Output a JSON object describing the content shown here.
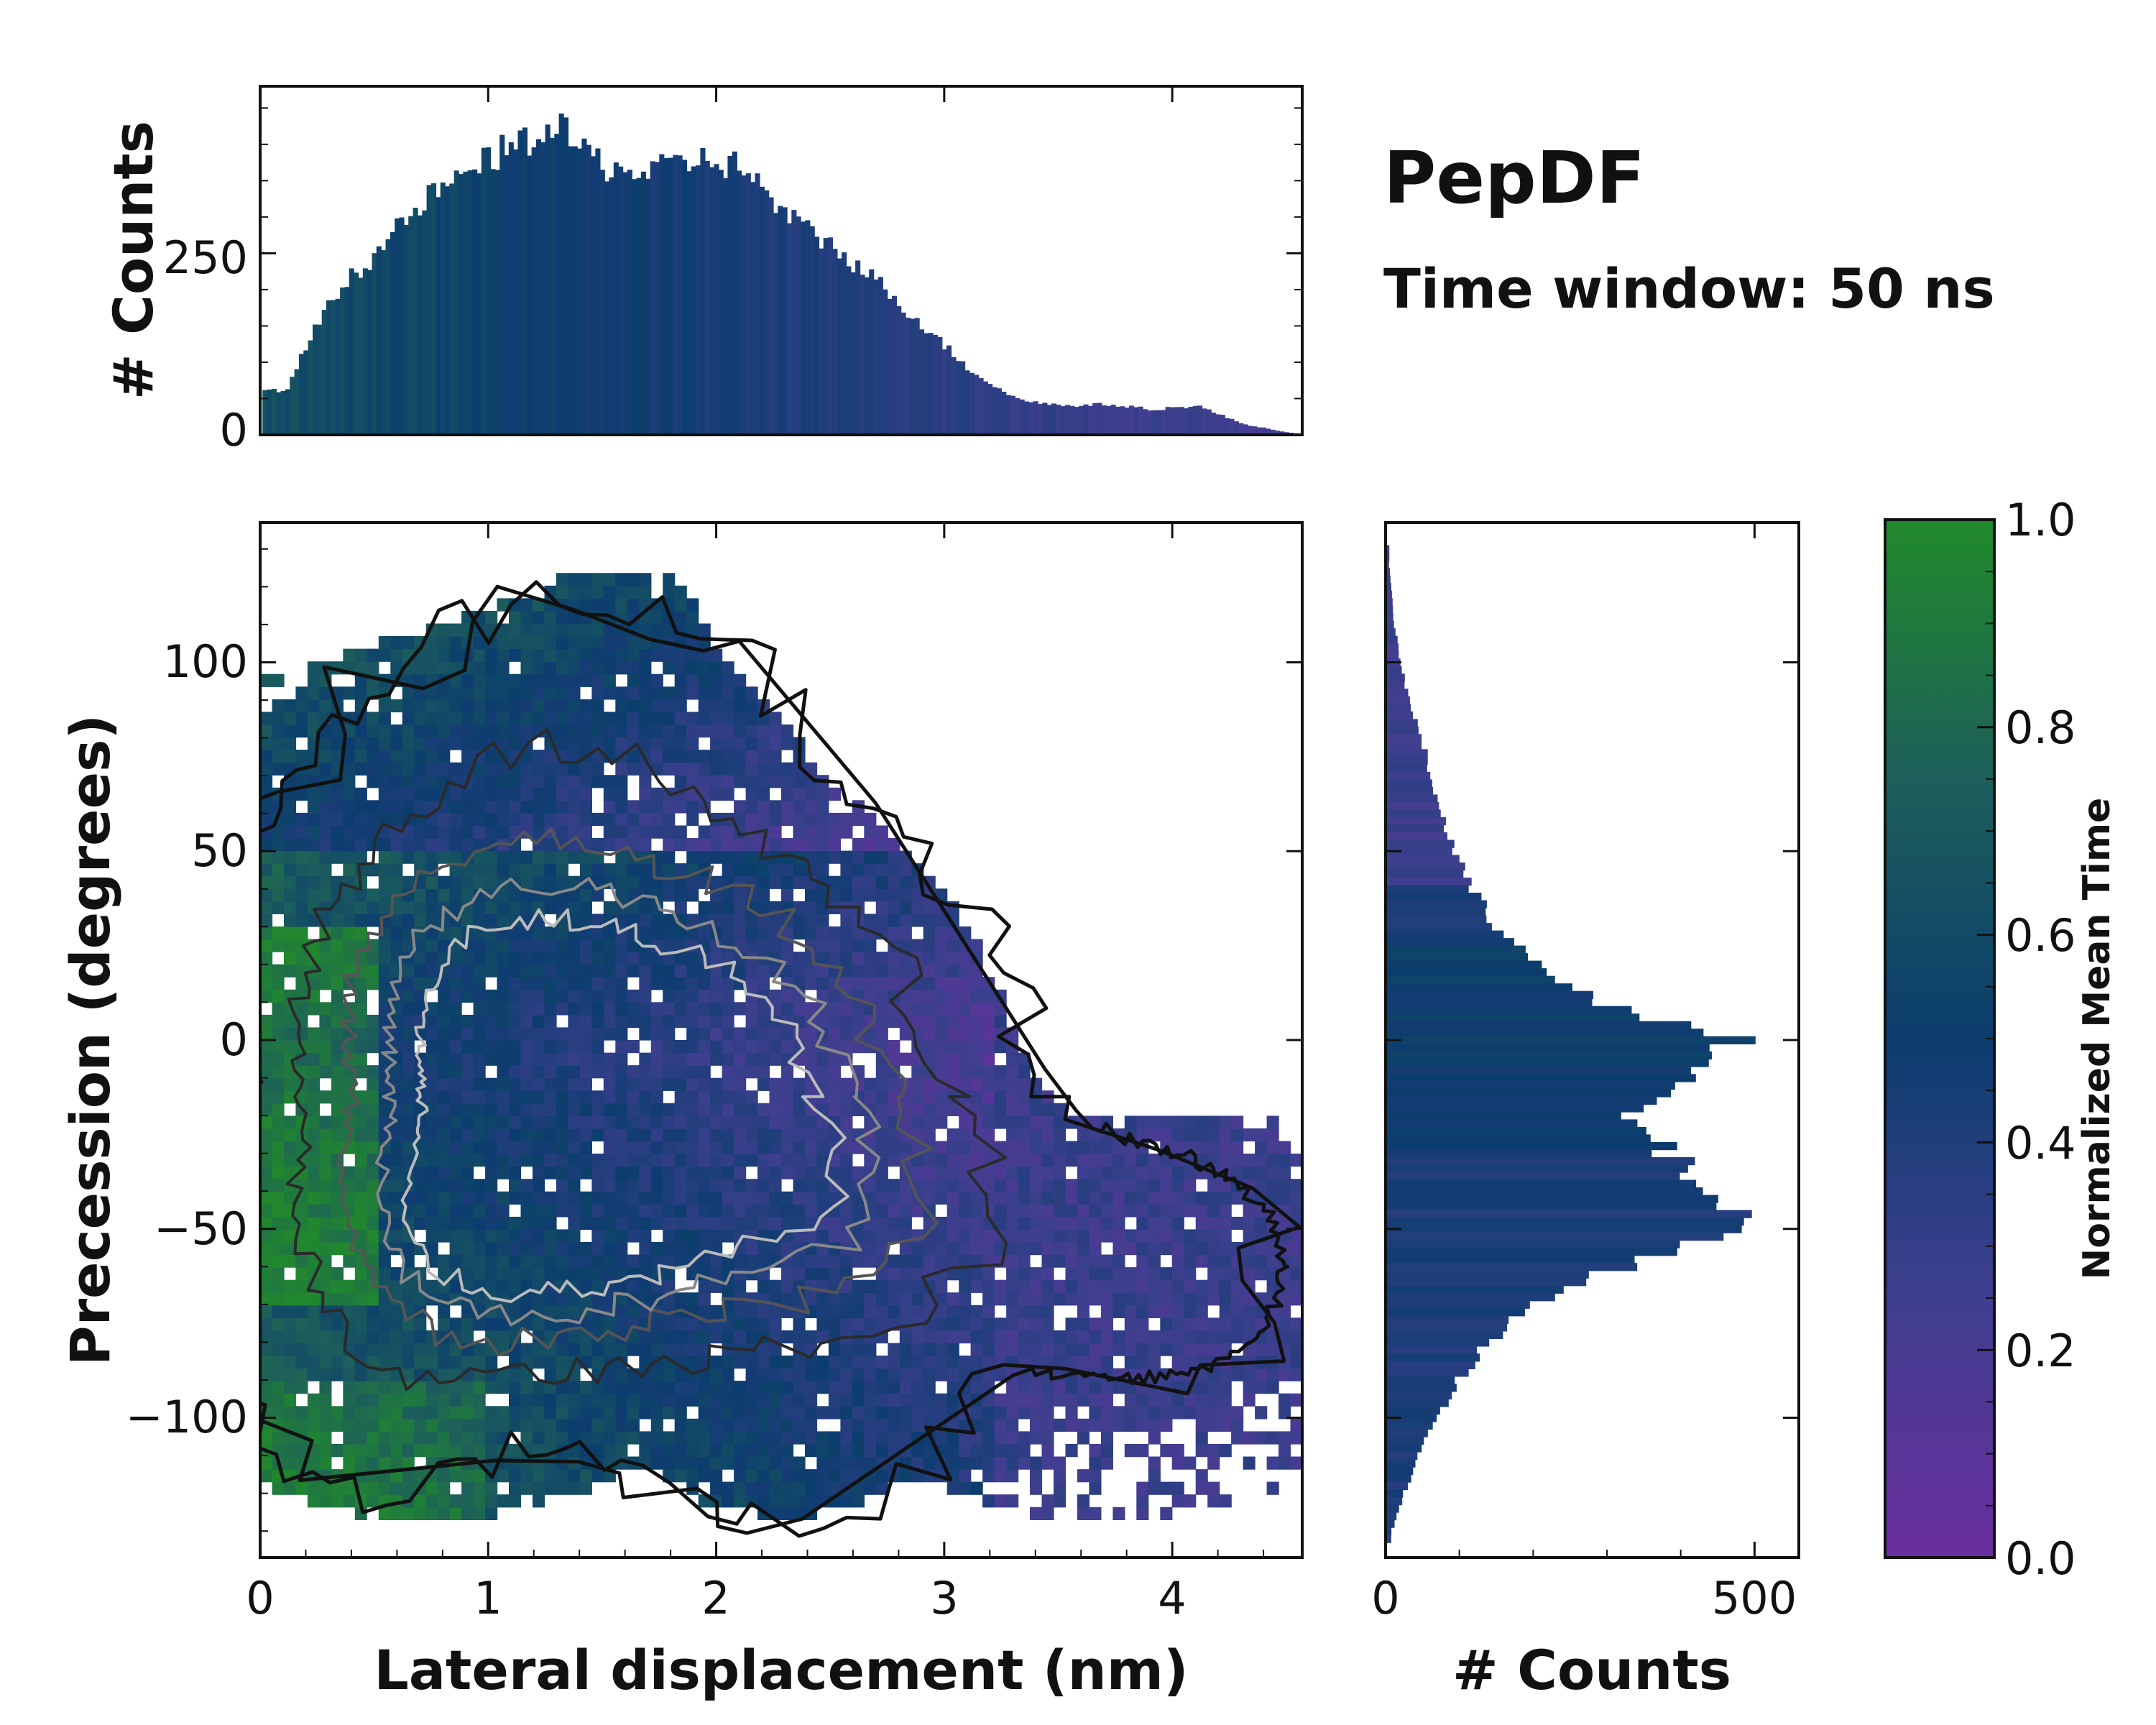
{
  "chart_data": {
    "type": "heatmap",
    "title": "PepDF",
    "subtitle": "Time window: 50 ns",
    "main": {
      "xlabel": "Lateral displacement (nm)",
      "ylabel": "Precession (degrees)",
      "xlim": [
        0,
        4.57
      ],
      "ylim": [
        -137,
        137
      ],
      "xticks": [
        "0",
        "1",
        "2",
        "3",
        "4"
      ],
      "xtick_values": [
        0,
        1,
        2,
        3,
        4
      ],
      "yticks": [
        "100",
        "50",
        "0",
        "−50",
        "−100"
      ],
      "ytick_values": [
        100,
        50,
        0,
        -50,
        -100
      ],
      "density_modes": [
        {
          "x": 1.05,
          "y": 8,
          "sx": 0.55,
          "sy": 32,
          "w": 0.7
        },
        {
          "x": 2.05,
          "y": 2,
          "sx": 0.55,
          "sy": 30,
          "w": 0.55
        },
        {
          "x": 1.15,
          "y": -50,
          "sx": 0.55,
          "sy": 22,
          "w": 0.75
        },
        {
          "x": 2.4,
          "y": -45,
          "sx": 0.55,
          "sy": 25,
          "w": 0.45
        },
        {
          "x": 3.9,
          "y": -60,
          "sx": 0.45,
          "sy": 22,
          "w": 0.12
        },
        {
          "x": 1.4,
          "y": 80,
          "sx": 0.6,
          "sy": 25,
          "w": 0.14
        },
        {
          "x": 0.5,
          "y": -95,
          "sx": 0.4,
          "sy": 20,
          "w": 0.1
        },
        {
          "x": 2.3,
          "y": -110,
          "sx": 0.5,
          "sy": 15,
          "w": 0.1
        }
      ]
    },
    "top_histogram": {
      "ylabel": "# Counts",
      "yticks": [
        "0",
        "250"
      ],
      "ytick_values": [
        0,
        250
      ],
      "ylim": [
        0,
        480
      ],
      "bin_centers": [
        0.1,
        0.3,
        0.5,
        0.7,
        0.9,
        1.1,
        1.3,
        1.5,
        1.7,
        1.9,
        2.1,
        2.3,
        2.5,
        2.7,
        2.9,
        3.1,
        3.3,
        3.5,
        3.7,
        3.9,
        4.1,
        4.3,
        4.5
      ],
      "counts": [
        60,
        190,
        250,
        320,
        360,
        400,
        420,
        370,
        360,
        380,
        370,
        300,
        260,
        210,
        150,
        90,
        50,
        40,
        42,
        35,
        40,
        15,
        3
      ]
    },
    "right_histogram": {
      "xlabel": "# Counts",
      "xticks": [
        "0",
        "500"
      ],
      "xtick_values": [
        0,
        500
      ],
      "xlim": [
        0,
        560
      ],
      "bin_centers": [
        125,
        110,
        100,
        90,
        80,
        70,
        60,
        50,
        40,
        30,
        20,
        10,
        0,
        -10,
        -20,
        -30,
        -40,
        -50,
        -60,
        -70,
        -80,
        -90,
        -100,
        -110,
        -120,
        -130
      ],
      "counts": [
        5,
        12,
        20,
        32,
        48,
        62,
        75,
        95,
        115,
        150,
        220,
        280,
        470,
        400,
        330,
        380,
        450,
        480,
        320,
        200,
        140,
        100,
        70,
        45,
        25,
        8
      ]
    },
    "colorbar": {
      "label": "Normalized Mean Time",
      "ticks": [
        "1.0",
        "0.8",
        "0.6",
        "0.4",
        "0.2",
        "0.0"
      ],
      "tick_values": [
        1.0,
        0.8,
        0.6,
        0.4,
        0.2,
        0.0
      ],
      "colors": [
        "#6a2e9e",
        "#3f3f8f",
        "#0c3d6e",
        "#1d5f5a",
        "#218a2b"
      ]
    }
  }
}
